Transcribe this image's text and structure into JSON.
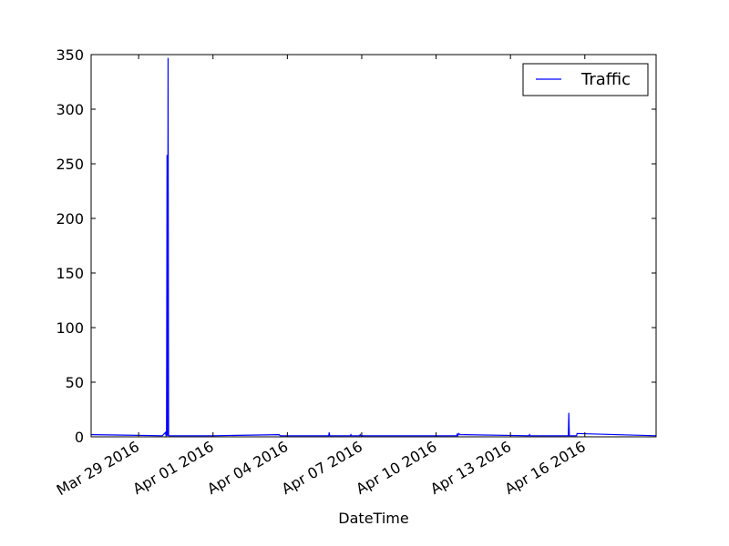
{
  "chart_data": {
    "type": "line",
    "xlabel": "DateTime",
    "ylabel": "",
    "title": "",
    "x_type": "datetime",
    "xlim": [
      "2016-03-27T02:00",
      "2016-04-18T21:00"
    ],
    "ylim": [
      0,
      350
    ],
    "yticks": [
      0,
      50,
      100,
      150,
      200,
      250,
      300,
      350
    ],
    "xticks": [
      {
        "date": "2016-03-29T00:00",
        "label": "Mar 29 2016"
      },
      {
        "date": "2016-04-01T00:00",
        "label": "Apr 01 2016"
      },
      {
        "date": "2016-04-04T00:00",
        "label": "Apr 04 2016"
      },
      {
        "date": "2016-04-07T00:00",
        "label": "Apr 07 2016"
      },
      {
        "date": "2016-04-10T00:00",
        "label": "Apr 10 2016"
      },
      {
        "date": "2016-04-13T00:00",
        "label": "Apr 13 2016"
      },
      {
        "date": "2016-04-16T00:00",
        "label": "Apr 16 2016"
      }
    ],
    "grid": false,
    "legend": {
      "position": "top-right"
    },
    "series": [
      {
        "name": "Traffic",
        "color": "#0000ff",
        "points": [
          [
            "2016-03-27T02:00",
            2
          ],
          [
            "2016-03-29T23:00",
            1
          ],
          [
            "2016-03-30T02:00",
            4
          ],
          [
            "2016-03-30T02:30",
            1
          ],
          [
            "2016-03-30T03:00",
            1
          ],
          [
            "2016-03-30T03:30",
            258
          ],
          [
            "2016-03-30T04:00",
            1
          ],
          [
            "2016-03-30T04:30",
            347
          ],
          [
            "2016-03-30T05:00",
            1
          ],
          [
            "2016-04-01T00:00",
            1
          ],
          [
            "2016-04-03T16:00",
            2
          ],
          [
            "2016-04-03T17:00",
            1
          ],
          [
            "2016-04-05T16:00",
            1
          ],
          [
            "2016-04-05T16:30",
            4
          ],
          [
            "2016-04-05T17:00",
            1
          ],
          [
            "2016-04-06T13:00",
            1
          ],
          [
            "2016-04-06T13:30",
            2
          ],
          [
            "2016-04-06T14:00",
            1
          ],
          [
            "2016-04-06T22:00",
            1
          ],
          [
            "2016-04-06T22:30",
            2
          ],
          [
            "2016-04-06T23:00",
            1
          ],
          [
            "2016-04-10T20:00",
            1
          ],
          [
            "2016-04-10T20:30",
            3
          ],
          [
            "2016-04-10T21:00",
            1
          ],
          [
            "2016-04-10T22:00",
            3
          ],
          [
            "2016-04-10T23:00",
            2
          ],
          [
            "2016-04-13T18:00",
            1
          ],
          [
            "2016-04-13T18:30",
            2
          ],
          [
            "2016-04-13T19:00",
            1
          ],
          [
            "2016-04-15T08:00",
            1
          ],
          [
            "2016-04-15T08:30",
            22
          ],
          [
            "2016-04-15T09:00",
            1
          ],
          [
            "2016-04-15T16:00",
            1
          ],
          [
            "2016-04-15T16:30",
            3
          ],
          [
            "2016-04-18T21:00",
            1
          ]
        ]
      }
    ]
  }
}
